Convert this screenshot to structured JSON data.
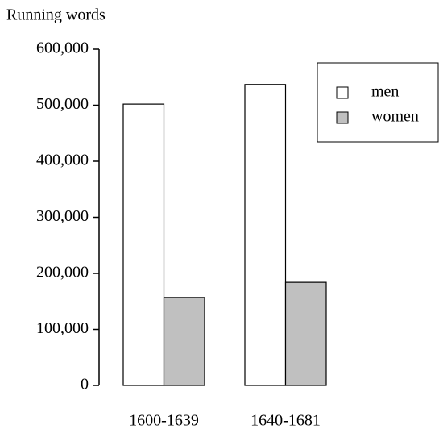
{
  "chart_data": {
    "type": "bar",
    "y_label": "Running words",
    "categories": [
      "1600-1639",
      "1640-1681"
    ],
    "series": [
      {
        "name": "men",
        "color": "#ffffff",
        "values": [
          502000,
          537000
        ]
      },
      {
        "name": "women",
        "color": "#c0c0c0",
        "values": [
          157000,
          184000
        ]
      }
    ],
    "ylim": [
      0,
      600000
    ],
    "yticks": [
      0,
      {
        "value": 100000,
        "label": "100,000"
      },
      {
        "value": 200000,
        "label": "200,000"
      },
      {
        "value": 300000,
        "label": "300,000"
      },
      {
        "value": 400000,
        "label": "400,000"
      },
      {
        "value": 500000,
        "label": "500,000"
      },
      {
        "value": 600000,
        "label": "600,000"
      }
    ],
    "legend": "upper right"
  }
}
